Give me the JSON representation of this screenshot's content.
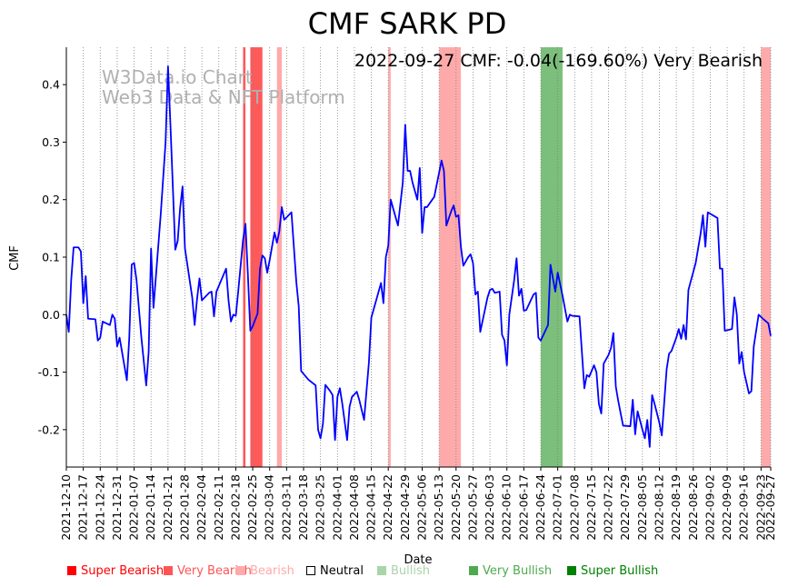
{
  "chart_data": {
    "type": "line",
    "title": "CMF SARK PD",
    "annotation": "2022-09-27 CMF: -0.04(-169.60%) Very Bearish",
    "watermark": [
      "W3Data.io Chart",
      "Web3 Data & NFT Platform"
    ],
    "xlabel": "Date",
    "ylabel": "CMF",
    "xlim": [
      "2021-12-10",
      "2022-09-27"
    ],
    "ylim": [
      -0.265,
      0.465
    ],
    "yticks": [
      -0.2,
      -0.1,
      0.0,
      0.1,
      0.2,
      0.3,
      0.4
    ],
    "xticks": [
      "2021-12-10",
      "2021-12-17",
      "2021-12-24",
      "2021-12-31",
      "2022-01-07",
      "2022-01-14",
      "2022-01-21",
      "2022-01-28",
      "2022-02-04",
      "2022-02-11",
      "2022-02-18",
      "2022-02-25",
      "2022-03-04",
      "2022-03-11",
      "2022-03-18",
      "2022-03-25",
      "2022-04-01",
      "2022-04-08",
      "2022-04-15",
      "2022-04-22",
      "2022-04-29",
      "2022-05-06",
      "2022-05-13",
      "2022-05-20",
      "2022-05-27",
      "2022-06-03",
      "2022-06-10",
      "2022-06-17",
      "2022-06-24",
      "2022-07-01",
      "2022-07-08",
      "2022-07-15",
      "2022-07-22",
      "2022-07-29",
      "2022-08-05",
      "2022-08-12",
      "2022-08-19",
      "2022-08-26",
      "2022-09-02",
      "2022-09-09",
      "2022-09-16",
      "2022-09-23",
      "2022-09-27"
    ],
    "bands": [
      {
        "start": "2022-02-21",
        "end": "2022-02-22",
        "sentiment": "very_bearish"
      },
      {
        "start": "2022-02-24",
        "end": "2022-03-01",
        "sentiment": "very_bearish"
      },
      {
        "start": "2022-03-07",
        "end": "2022-03-09",
        "sentiment": "bearish"
      },
      {
        "start": "2022-04-22",
        "end": "2022-04-23",
        "sentiment": "bearish"
      },
      {
        "start": "2022-05-13",
        "end": "2022-05-22",
        "sentiment": "bearish"
      },
      {
        "start": "2022-06-24",
        "end": "2022-07-03",
        "sentiment": "very_bullish"
      },
      {
        "start": "2022-09-23",
        "end": "2022-09-27",
        "sentiment": "bearish"
      }
    ],
    "series": [
      {
        "name": "CMF",
        "color": "#0000ff",
        "points": [
          [
            "2021-12-10",
            0.0
          ],
          [
            "2021-12-11",
            -0.03
          ],
          [
            "2021-12-12",
            0.06
          ],
          [
            "2021-12-13",
            0.117
          ],
          [
            "2021-12-15",
            0.117
          ],
          [
            "2021-12-16",
            0.11
          ],
          [
            "2021-12-17",
            0.02
          ],
          [
            "2021-12-18",
            0.067
          ],
          [
            "2021-12-19",
            -0.007
          ],
          [
            "2021-12-22",
            -0.008
          ],
          [
            "2021-12-23",
            -0.045
          ],
          [
            "2021-12-24",
            -0.04
          ],
          [
            "2021-12-25",
            -0.012
          ],
          [
            "2021-12-28",
            -0.018
          ],
          [
            "2021-12-29",
            -0.0
          ],
          [
            "2021-12-30",
            -0.007
          ],
          [
            "2021-12-31",
            -0.055
          ],
          [
            "2022-01-01",
            -0.04
          ],
          [
            "2022-01-04",
            -0.114
          ],
          [
            "2022-01-05",
            -0.04
          ],
          [
            "2022-01-06",
            0.087
          ],
          [
            "2022-01-07",
            0.09
          ],
          [
            "2022-01-08",
            0.06
          ],
          [
            "2022-01-10",
            -0.04
          ],
          [
            "2022-01-12",
            -0.123
          ],
          [
            "2022-01-13",
            -0.065
          ],
          [
            "2022-01-14",
            0.115
          ],
          [
            "2022-01-15",
            0.012
          ],
          [
            "2022-01-18",
            0.175
          ],
          [
            "2022-01-20",
            0.3
          ],
          [
            "2022-01-21",
            0.432
          ],
          [
            "2022-01-22",
            0.33
          ],
          [
            "2022-01-24",
            0.113
          ],
          [
            "2022-01-25",
            0.128
          ],
          [
            "2022-01-26",
            0.185
          ],
          [
            "2022-01-27",
            0.223
          ],
          [
            "2022-01-28",
            0.115
          ],
          [
            "2022-01-31",
            0.03
          ],
          [
            "2022-02-01",
            -0.018
          ],
          [
            "2022-02-02",
            0.027
          ],
          [
            "2022-02-03",
            0.063
          ],
          [
            "2022-02-04",
            0.025
          ],
          [
            "2022-02-07",
            0.038
          ],
          [
            "2022-02-08",
            0.04
          ],
          [
            "2022-02-09",
            -0.003
          ],
          [
            "2022-02-10",
            0.04
          ],
          [
            "2022-02-12",
            0.06
          ],
          [
            "2022-02-14",
            0.08
          ],
          [
            "2022-02-15",
            0.025
          ],
          [
            "2022-02-16",
            -0.012
          ],
          [
            "2022-02-17",
            -0.0
          ],
          [
            "2022-02-18",
            -0.002
          ],
          [
            "2022-02-19",
            0.04
          ],
          [
            "2022-02-21",
            0.13
          ],
          [
            "2022-02-22",
            0.158
          ],
          [
            "2022-02-23",
            0.07
          ],
          [
            "2022-02-24",
            -0.028
          ],
          [
            "2022-02-25",
            -0.02
          ],
          [
            "2022-02-27",
            0.002
          ],
          [
            "2022-02-28",
            0.08
          ],
          [
            "2022-03-01",
            0.103
          ],
          [
            "2022-03-02",
            0.098
          ],
          [
            "2022-03-03",
            0.073
          ],
          [
            "2022-03-04",
            0.095
          ],
          [
            "2022-03-06",
            0.143
          ],
          [
            "2022-03-07",
            0.125
          ],
          [
            "2022-03-08",
            0.145
          ],
          [
            "2022-03-09",
            0.187
          ],
          [
            "2022-03-10",
            0.165
          ],
          [
            "2022-03-13",
            0.178
          ],
          [
            "2022-03-15",
            0.057
          ],
          [
            "2022-03-16",
            0.015
          ],
          [
            "2022-03-17",
            -0.098
          ],
          [
            "2022-03-20",
            -0.113
          ],
          [
            "2022-03-23",
            -0.123
          ],
          [
            "2022-03-24",
            -0.2
          ],
          [
            "2022-03-25",
            -0.215
          ],
          [
            "2022-03-26",
            -0.19
          ],
          [
            "2022-03-27",
            -0.122
          ],
          [
            "2022-03-29",
            -0.133
          ],
          [
            "2022-03-30",
            -0.14
          ],
          [
            "2022-03-31",
            -0.218
          ],
          [
            "2022-04-01",
            -0.143
          ],
          [
            "2022-04-02",
            -0.128
          ],
          [
            "2022-04-03",
            -0.155
          ],
          [
            "2022-04-05",
            -0.218
          ],
          [
            "2022-04-06",
            -0.16
          ],
          [
            "2022-04-07",
            -0.143
          ],
          [
            "2022-04-09",
            -0.134
          ],
          [
            "2022-04-10",
            -0.148
          ],
          [
            "2022-04-12",
            -0.183
          ],
          [
            "2022-04-14",
            -0.083
          ],
          [
            "2022-04-15",
            -0.005
          ],
          [
            "2022-04-16",
            0.01
          ],
          [
            "2022-04-18",
            0.04
          ],
          [
            "2022-04-19",
            0.055
          ],
          [
            "2022-04-20",
            0.02
          ],
          [
            "2022-04-21",
            0.1
          ],
          [
            "2022-04-22",
            0.12
          ],
          [
            "2022-04-23",
            0.2
          ],
          [
            "2022-04-26",
            0.155
          ],
          [
            "2022-04-28",
            0.23
          ],
          [
            "2022-04-29",
            0.33
          ],
          [
            "2022-04-30",
            0.25
          ],
          [
            "2022-05-01",
            0.25
          ],
          [
            "2022-05-02",
            0.23
          ],
          [
            "2022-05-04",
            0.2
          ],
          [
            "2022-05-05",
            0.255
          ],
          [
            "2022-05-06",
            0.142
          ],
          [
            "2022-05-07",
            0.187
          ],
          [
            "2022-05-08",
            0.187
          ],
          [
            "2022-05-11",
            0.205
          ],
          [
            "2022-05-14",
            0.268
          ],
          [
            "2022-05-15",
            0.25
          ],
          [
            "2022-05-16",
            0.155
          ],
          [
            "2022-05-18",
            0.18
          ],
          [
            "2022-05-19",
            0.19
          ],
          [
            "2022-05-20",
            0.17
          ],
          [
            "2022-05-21",
            0.173
          ],
          [
            "2022-05-22",
            0.118
          ],
          [
            "2022-05-23",
            0.085
          ],
          [
            "2022-05-25",
            0.1
          ],
          [
            "2022-05-26",
            0.105
          ],
          [
            "2022-05-27",
            0.09
          ],
          [
            "2022-05-28",
            0.035
          ],
          [
            "2022-05-29",
            0.04
          ],
          [
            "2022-05-30",
            -0.03
          ],
          [
            "2022-06-02",
            0.03
          ],
          [
            "2022-06-03",
            0.043
          ],
          [
            "2022-06-04",
            0.045
          ],
          [
            "2022-06-05",
            0.038
          ],
          [
            "2022-06-07",
            0.04
          ],
          [
            "2022-06-08",
            -0.035
          ],
          [
            "2022-06-09",
            -0.045
          ],
          [
            "2022-06-10",
            -0.088
          ],
          [
            "2022-06-11",
            0.0
          ],
          [
            "2022-06-13",
            0.06
          ],
          [
            "2022-06-14",
            0.098
          ],
          [
            "2022-06-15",
            0.033
          ],
          [
            "2022-06-16",
            0.045
          ],
          [
            "2022-06-17",
            0.007
          ],
          [
            "2022-06-18",
            0.008
          ],
          [
            "2022-06-21",
            0.035
          ],
          [
            "2022-06-22",
            0.038
          ],
          [
            "2022-06-23",
            -0.04
          ],
          [
            "2022-06-24",
            -0.045
          ],
          [
            "2022-06-27",
            -0.018
          ],
          [
            "2022-06-28",
            0.087
          ],
          [
            "2022-06-30",
            0.04
          ],
          [
            "2022-07-01",
            0.073
          ],
          [
            "2022-07-03",
            0.033
          ],
          [
            "2022-07-05",
            -0.012
          ],
          [
            "2022-07-06",
            0.0
          ],
          [
            "2022-07-07",
            -0.002
          ],
          [
            "2022-07-10",
            -0.003
          ],
          [
            "2022-07-12",
            -0.128
          ],
          [
            "2022-07-13",
            -0.105
          ],
          [
            "2022-07-14",
            -0.108
          ],
          [
            "2022-07-16",
            -0.088
          ],
          [
            "2022-07-17",
            -0.1
          ],
          [
            "2022-07-18",
            -0.155
          ],
          [
            "2022-07-19",
            -0.172
          ],
          [
            "2022-07-20",
            -0.085
          ],
          [
            "2022-07-22",
            -0.07
          ],
          [
            "2022-07-23",
            -0.058
          ],
          [
            "2022-07-24",
            -0.032
          ],
          [
            "2022-07-25",
            -0.125
          ],
          [
            "2022-07-26",
            -0.15
          ],
          [
            "2022-07-28",
            -0.193
          ],
          [
            "2022-07-31",
            -0.194
          ],
          [
            "2022-08-01",
            -0.148
          ],
          [
            "2022-08-02",
            -0.208
          ],
          [
            "2022-08-03",
            -0.168
          ],
          [
            "2022-08-05",
            -0.2
          ],
          [
            "2022-08-06",
            -0.215
          ],
          [
            "2022-08-07",
            -0.183
          ],
          [
            "2022-08-08",
            -0.23
          ],
          [
            "2022-08-09",
            -0.14
          ],
          [
            "2022-08-10",
            -0.155
          ],
          [
            "2022-08-12",
            -0.188
          ],
          [
            "2022-08-13",
            -0.21
          ],
          [
            "2022-08-15",
            -0.095
          ],
          [
            "2022-08-16",
            -0.068
          ],
          [
            "2022-08-17",
            -0.063
          ],
          [
            "2022-08-19",
            -0.04
          ],
          [
            "2022-08-20",
            -0.025
          ],
          [
            "2022-08-21",
            -0.042
          ],
          [
            "2022-08-22",
            -0.018
          ],
          [
            "2022-08-23",
            -0.043
          ],
          [
            "2022-08-24",
            0.043
          ],
          [
            "2022-08-27",
            0.09
          ],
          [
            "2022-08-29",
            0.14
          ],
          [
            "2022-08-30",
            0.173
          ],
          [
            "2022-08-31",
            0.118
          ],
          [
            "2022-09-01",
            0.178
          ],
          [
            "2022-09-05",
            0.168
          ],
          [
            "2022-09-06",
            0.08
          ],
          [
            "2022-09-07",
            0.08
          ],
          [
            "2022-09-08",
            -0.028
          ],
          [
            "2022-09-11",
            -0.025
          ],
          [
            "2022-09-12",
            0.03
          ],
          [
            "2022-09-13",
            0.0
          ],
          [
            "2022-09-14",
            -0.085
          ],
          [
            "2022-09-15",
            -0.065
          ],
          [
            "2022-09-16",
            -0.1
          ],
          [
            "2022-09-18",
            -0.137
          ],
          [
            "2022-09-19",
            -0.133
          ],
          [
            "2022-09-20",
            -0.055
          ],
          [
            "2022-09-22",
            -0.0
          ],
          [
            "2022-09-24",
            -0.008
          ],
          [
            "2022-09-26",
            -0.015
          ],
          [
            "2022-09-27",
            -0.037
          ]
        ]
      }
    ],
    "legend": [
      {
        "label": "Super Bearish",
        "color": "#ff0000"
      },
      {
        "label": "Very Bearish",
        "color": "#ff5555"
      },
      {
        "label": "Bearish",
        "color": "#ffaaaa"
      },
      {
        "label": "Neutral",
        "color": "#000000"
      },
      {
        "label": "Bullish",
        "color": "#aad4aa"
      },
      {
        "label": "Very Bullish",
        "color": "#4daa4d"
      },
      {
        "label": "Super Bullish",
        "color": "#008000"
      }
    ],
    "colors": {
      "line": "#0000ff",
      "very_bearish": "#ff5a5a",
      "bearish": "#ffaaaa",
      "very_bullish": "#7cbf7c",
      "watermark": "#b0b0b0",
      "grid": "#808080",
      "axis": "#000000"
    }
  }
}
